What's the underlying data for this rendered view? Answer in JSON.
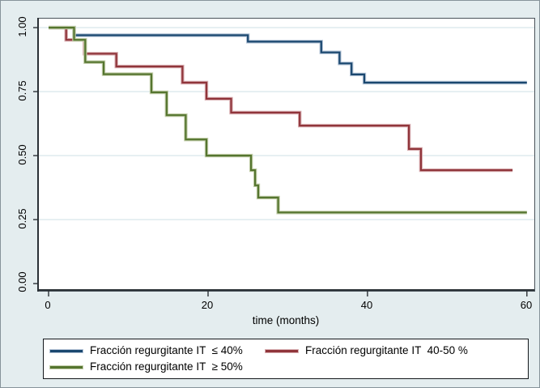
{
  "chart_data": {
    "type": "line",
    "subtype": "kaplan-meier-step",
    "title": "",
    "xlabel": "time (months)",
    "ylabel": "",
    "x_ticks": [
      0,
      20,
      40,
      60
    ],
    "x_tick_labels": [
      "0",
      "20",
      "40",
      "60"
    ],
    "y_ticks": [
      0,
      0.25,
      0.5,
      0.75,
      1.0
    ],
    "y_tick_labels": [
      "0.00",
      "0.25",
      "0.50",
      "0.75",
      "1.00"
    ],
    "xlim": [
      -1.22,
      60.93
    ],
    "ylim": [
      -0.028,
      1.035
    ],
    "grid": "horizontal",
    "y_gridlines": [
      0.25,
      0.5,
      0.75,
      1.0
    ],
    "grid_color": "#e3edf0",
    "tick_color": "#2b3136",
    "background_color": "#e4edef",
    "plot_background_color": "#ffffff",
    "legend_position": "bottom",
    "series": [
      {
        "name": "Fracción regurgitante IT  ≤ 40%",
        "color": "#1a476f",
        "halo": "#b3c3d6",
        "points": [
          [
            0,
            1.0
          ],
          [
            3.2,
            0.97
          ],
          [
            25,
            0.945
          ],
          [
            34.2,
            0.903
          ],
          [
            36.5,
            0.86
          ],
          [
            38,
            0.817
          ],
          [
            39.6,
            0.785
          ],
          [
            60,
            0.785
          ]
        ]
      },
      {
        "name": "Fracción regurgitante IT  40-50 %",
        "color": "#90353b",
        "halo": "#d8aeb1",
        "points": [
          [
            0,
            1.0
          ],
          [
            2.2,
            0.952
          ],
          [
            4.5,
            0.898
          ],
          [
            8.5,
            0.848
          ],
          [
            16.8,
            0.785
          ],
          [
            19.8,
            0.722
          ],
          [
            22.9,
            0.668
          ],
          [
            31.5,
            0.617
          ],
          [
            45.2,
            0.526
          ],
          [
            46.7,
            0.443
          ],
          [
            58.2,
            0.443
          ]
        ]
      },
      {
        "name": "Fracción regurgitante IT  ≥ 50%",
        "color": "#55752f",
        "halo": "#c2cda9",
        "points": [
          [
            0,
            1.0
          ],
          [
            3.2,
            0.952
          ],
          [
            4.6,
            0.865
          ],
          [
            6.9,
            0.818
          ],
          [
            12.9,
            0.747
          ],
          [
            14.8,
            0.658
          ],
          [
            17.2,
            0.563
          ],
          [
            19.8,
            0.5
          ],
          [
            25.4,
            0.443
          ],
          [
            25.9,
            0.384
          ],
          [
            26.3,
            0.336
          ],
          [
            28.8,
            0.278
          ],
          [
            60,
            0.278
          ]
        ]
      }
    ]
  }
}
